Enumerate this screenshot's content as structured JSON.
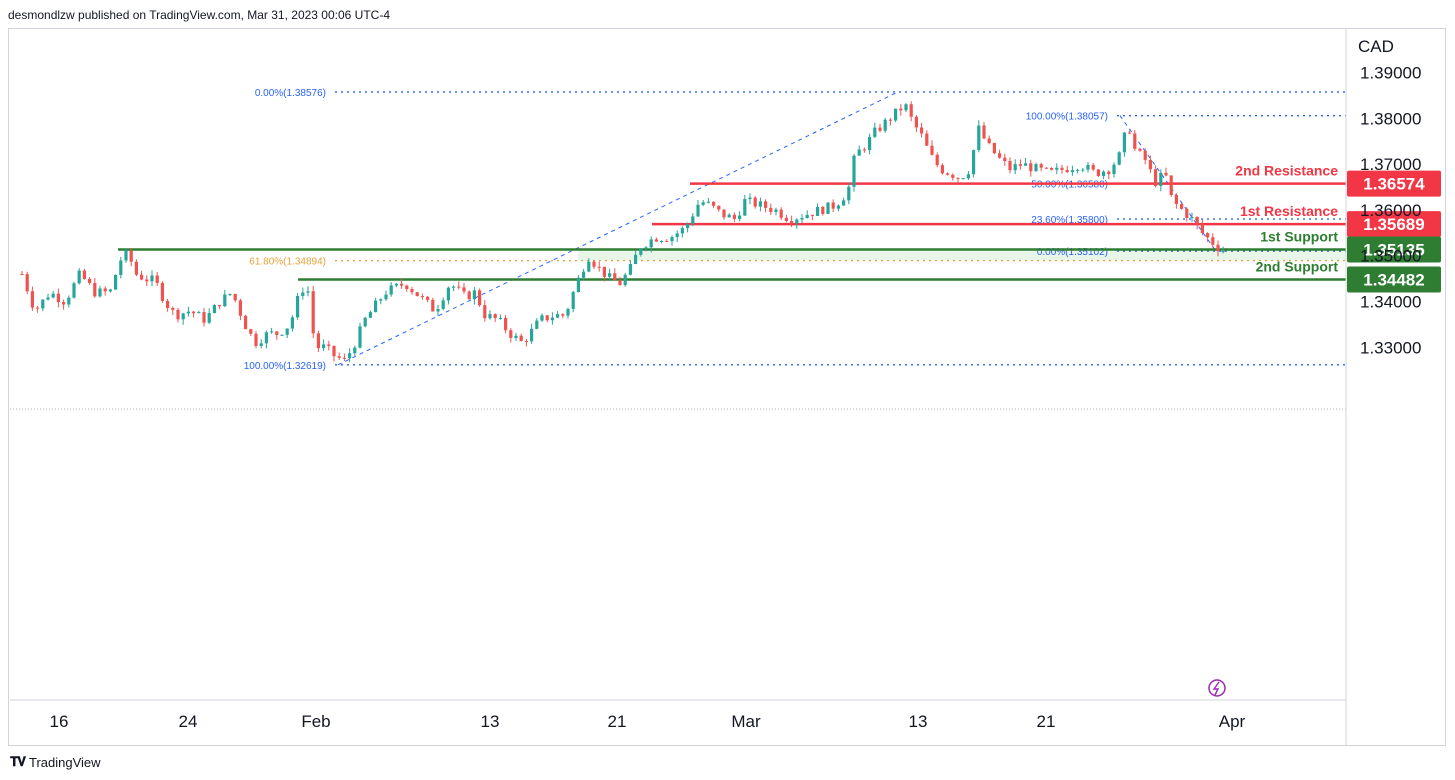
{
  "header": {
    "published": "desmondlzw published on TradingView.com, Mar 31, 2023 00:06 UTC-4"
  },
  "footer": {
    "logo_icon": "tradingview-logo-icon",
    "brand": "TradingView"
  },
  "chart_data": {
    "type": "candlestick",
    "currency": "CAD",
    "y_ticks": [
      "1.39000",
      "1.38000",
      "1.37000",
      "1.36000",
      "1.35000",
      "1.34000",
      "1.33000"
    ],
    "y_tick_values": [
      1.39,
      1.38,
      1.37,
      1.36,
      1.35,
      1.34,
      1.33
    ],
    "x_ticks": [
      "16",
      "24",
      "Feb",
      "13",
      "21",
      "Mar",
      "13",
      "21",
      "Apr"
    ],
    "ylim": [
      1.253,
      1.3995
    ],
    "colors": {
      "up": "#26a69a",
      "down": "#ef5350",
      "fib_blue": "#2962ff",
      "fib_orange": "#e6a23c",
      "resistance": "#f23645",
      "support": "#2e7d32",
      "zone": "#e8f5e9"
    },
    "levels": {
      "resistance_2": {
        "label": "2nd Resistance",
        "value": 1.36574,
        "price_label": "1.36574"
      },
      "resistance_1": {
        "label": "1st Resistance",
        "value": 1.35689,
        "price_label": "1.35689"
      },
      "support_1": {
        "label": "1st Support",
        "value": 1.35135,
        "price_label": "1.35135"
      },
      "support_2": {
        "label": "2nd Support",
        "value": 1.34482,
        "price_label": "1.34482"
      }
    },
    "fib_left": {
      "top": {
        "label": "0.00%(1.38576)",
        "value": 1.38576
      },
      "mid": {
        "label": "61.80%(1.34894)",
        "value": 1.34894
      },
      "bottom": {
        "label": "100.00%(1.32619)",
        "value": 1.32619
      }
    },
    "fib_right": {
      "top": {
        "label": "100.00%(1.38057)",
        "value": 1.38057
      },
      "mid50": {
        "label": "50.00%(1.36580)",
        "value": 1.3658
      },
      "mid236": {
        "label": "23.60%(1.35800)",
        "value": 1.358
      },
      "bottom": {
        "label": "0.00%(1.35102)",
        "value": 1.35102
      }
    },
    "price_path": [
      [
        0,
        1.348
      ],
      [
        12,
        1.346
      ],
      [
        25,
        1.338
      ],
      [
        40,
        1.342
      ],
      [
        55,
        1.34
      ],
      [
        70,
        1.346
      ],
      [
        85,
        1.342
      ],
      [
        100,
        1.342
      ],
      [
        110,
        1.349
      ],
      [
        118,
        1.3505
      ],
      [
        126,
        1.346
      ],
      [
        135,
        1.345
      ],
      [
        145,
        1.3445
      ],
      [
        155,
        1.34
      ],
      [
        165,
        1.337
      ],
      [
        180,
        1.338
      ],
      [
        195,
        1.336
      ],
      [
        210,
        1.34
      ],
      [
        222,
        1.342
      ],
      [
        235,
        1.335
      ],
      [
        245,
        1.331
      ],
      [
        258,
        1.333
      ],
      [
        268,
        1.333
      ],
      [
        280,
        1.335
      ],
      [
        290,
        1.342
      ],
      [
        297,
        1.344
      ],
      [
        305,
        1.33
      ],
      [
        315,
        1.33
      ],
      [
        325,
        1.328
      ],
      [
        335,
        1.327
      ],
      [
        345,
        1.331
      ],
      [
        355,
        1.336
      ],
      [
        365,
        1.339
      ],
      [
        375,
        1.342
      ],
      [
        385,
        1.343
      ],
      [
        395,
        1.344
      ],
      [
        410,
        1.341
      ],
      [
        425,
        1.338
      ],
      [
        440,
        1.344
      ],
      [
        455,
        1.341
      ],
      [
        465,
        1.342
      ],
      [
        475,
        1.337
      ],
      [
        488,
        1.336
      ],
      [
        500,
        1.333
      ],
      [
        512,
        1.331
      ],
      [
        520,
        1.333
      ],
      [
        530,
        1.336
      ],
      [
        545,
        1.337
      ],
      [
        555,
        1.337
      ],
      [
        565,
        1.343
      ],
      [
        578,
        1.35
      ],
      [
        590,
        1.347
      ],
      [
        600,
        1.345
      ],
      [
        610,
        1.344
      ],
      [
        620,
        1.347
      ],
      [
        630,
        1.352
      ],
      [
        645,
        1.354
      ],
      [
        660,
        1.354
      ],
      [
        675,
        1.356
      ],
      [
        690,
        1.362
      ],
      [
        700,
        1.361
      ],
      [
        712,
        1.359
      ],
      [
        725,
        1.358
      ],
      [
        735,
        1.362
      ],
      [
        750,
        1.361
      ],
      [
        765,
        1.36
      ],
      [
        780,
        1.358
      ],
      [
        795,
        1.359
      ],
      [
        810,
        1.36
      ],
      [
        825,
        1.361
      ],
      [
        838,
        1.364
      ],
      [
        845,
        1.372
      ],
      [
        855,
        1.374
      ],
      [
        865,
        1.377
      ],
      [
        875,
        1.379
      ],
      [
        885,
        1.381
      ],
      [
        895,
        1.383
      ],
      [
        903,
        1.379
      ],
      [
        912,
        1.376
      ],
      [
        920,
        1.372
      ],
      [
        930,
        1.369
      ],
      [
        940,
        1.368
      ],
      [
        950,
        1.367
      ],
      [
        960,
        1.369
      ],
      [
        968,
        1.378
      ],
      [
        978,
        1.374
      ],
      [
        990,
        1.371
      ],
      [
        1000,
        1.369
      ],
      [
        1012,
        1.37
      ],
      [
        1025,
        1.369
      ],
      [
        1040,
        1.368
      ],
      [
        1055,
        1.369
      ],
      [
        1070,
        1.37
      ],
      [
        1085,
        1.368
      ],
      [
        1100,
        1.369
      ],
      [
        1110,
        1.372
      ],
      [
        1118,
        1.379
      ],
      [
        1125,
        1.373
      ],
      [
        1135,
        1.371
      ],
      [
        1145,
        1.366
      ],
      [
        1155,
        1.368
      ],
      [
        1162,
        1.362
      ],
      [
        1172,
        1.36
      ],
      [
        1182,
        1.358
      ],
      [
        1192,
        1.355
      ],
      [
        1202,
        1.353
      ],
      [
        1210,
        1.3515
      ],
      [
        1216,
        1.351
      ]
    ]
  }
}
